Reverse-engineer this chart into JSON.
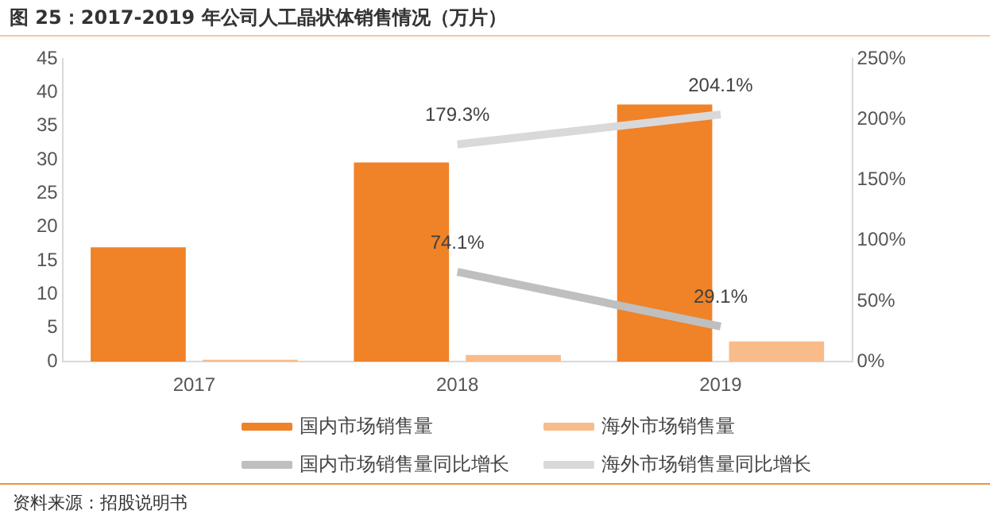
{
  "chart_data": {
    "type": "bar",
    "title": "图 25：2017-2019 年公司人工晶状体销售情况（万片）",
    "categories": [
      "2017",
      "2018",
      "2019"
    ],
    "series": [
      {
        "name": "国内市场销售量",
        "color": "#f08228",
        "values": [
          17.0,
          29.6,
          38.2
        ]
      },
      {
        "name": "海外市场销售量",
        "color": "#f8bb8a",
        "values": [
          0.3,
          1.0,
          3.0
        ]
      },
      {
        "name": "国内市场销售量同比增长",
        "type": "line",
        "axis": "y2",
        "color": "#bfbfbf",
        "values": [
          null,
          74.1,
          29.1
        ],
        "value_labels": [
          null,
          "74.1%",
          "29.1%"
        ]
      },
      {
        "name": "海外市场销售量同比增长",
        "type": "line",
        "axis": "y2",
        "color": "#d9d9d9",
        "values": [
          null,
          179.3,
          204.1
        ],
        "value_labels": [
          null,
          "179.3%",
          "204.1%"
        ]
      }
    ],
    "ylim": [
      0,
      45
    ],
    "yticks": [
      0,
      5,
      10,
      15,
      20,
      25,
      30,
      35,
      40,
      45
    ],
    "y2lim": [
      0,
      250
    ],
    "y2ticks": [
      {
        "value": 0,
        "label": "0%"
      },
      {
        "value": 50,
        "label": "50%"
      },
      {
        "value": 100,
        "label": "100%"
      },
      {
        "value": 150,
        "label": "150%"
      },
      {
        "value": 200,
        "label": "200%"
      },
      {
        "value": 250,
        "label": "250%"
      }
    ],
    "grid": false,
    "legend": "bottom",
    "marker": "none",
    "annotations": [
      "资料来源：招股说明书"
    ]
  }
}
